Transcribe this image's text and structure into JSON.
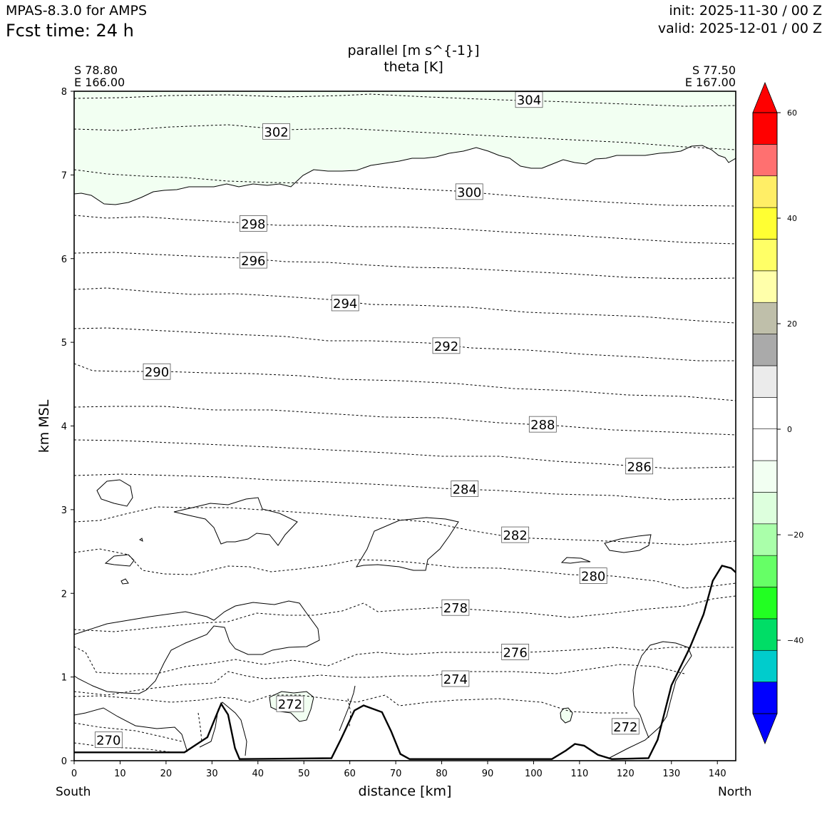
{
  "header": {
    "model": "MPAS-8.3.0 for AMPS",
    "fcst_time": "Fcst time:   24 h",
    "init": "init: 2025-11-30 / 00 Z",
    "valid": "valid: 2025-12-01 / 00 Z"
  },
  "chart_data": {
    "type": "contour",
    "title": "parallel [m s^{-1}]",
    "subtitle": "theta [K]",
    "xlabel": "distance [km]",
    "ylabel": "km MSL",
    "xlim": [
      0,
      144
    ],
    "ylim": [
      0,
      8
    ],
    "x_ticks": [
      "0",
      "10",
      "20",
      "30",
      "40",
      "50",
      "60",
      "70",
      "80",
      "90",
      "100",
      "110",
      "120",
      "130",
      "140"
    ],
    "y_ticks": [
      "0",
      "1",
      "2",
      "3",
      "4",
      "5",
      "6",
      "7",
      "8"
    ],
    "endpoints": {
      "left": {
        "lat": "S 78.80",
        "lon": "E 166.00",
        "label": "South"
      },
      "right": {
        "lat": "S 77.50",
        "lon": "E 167.00",
        "label": "North"
      }
    },
    "theta_contours": [
      {
        "label": "304",
        "label_x": 99,
        "label_y": 7.9,
        "y_left": 7.92,
        "y_right": 7.82
      },
      {
        "label": "302",
        "label_x": 44,
        "label_y": 7.52,
        "y_left": 7.56,
        "y_right": 7.45
      },
      {
        "label": "300",
        "label_x": 86,
        "label_y": 6.8,
        "y_left": 7.07,
        "y_right": 6.63
      },
      {
        "label": "298",
        "label_x": 39,
        "label_y": 6.42,
        "y_left": 6.52,
        "y_right": 6.3
      },
      {
        "label": "296",
        "label_x": 39,
        "label_y": 5.98,
        "y_left": 6.07,
        "y_right": 5.85
      },
      {
        "label": "294",
        "label_x": 59,
        "label_y": 5.47,
        "y_left": 5.63,
        "y_right": 5.35
      },
      {
        "label": "292",
        "label_x": 81,
        "label_y": 4.96,
        "y_left": 5.17,
        "y_right": 4.88
      },
      {
        "label": "290",
        "label_x": 18,
        "label_y": 4.65,
        "y_left": 4.75,
        "y_right": 4.45
      },
      {
        "label": "288",
        "label_x": 102,
        "label_y": 4.02,
        "y_left": 4.22,
        "y_right": 3.88
      },
      {
        "label": "286",
        "label_x": 123,
        "label_y": 3.52,
        "y_left": 3.83,
        "y_right": 3.5
      },
      {
        "label": "284",
        "label_x": 85,
        "label_y": 3.25,
        "y_left": 3.4,
        "y_right": 3.15
      },
      {
        "label": "282",
        "label_x": 96,
        "label_y": 2.7,
        "y_left": 2.85,
        "y_right": 2.6
      },
      {
        "label": "280",
        "label_x": 113,
        "label_y": 2.21,
        "y_left": 2.48,
        "y_right": 2.1
      },
      {
        "label": "278",
        "label_x": 83,
        "label_y": 1.83,
        "y_left": 1.85,
        "y_right": 2.3
      },
      {
        "label": "276",
        "label_x": 96,
        "label_y": 1.3,
        "y_left": 1.37,
        "y_right": 1.55
      },
      {
        "label": "274",
        "label_x": 83,
        "label_y": 0.98,
        "y_left": 1.0,
        "y_right": 1.3
      },
      {
        "label": "272",
        "label_x": 47,
        "label_y": 0.68,
        "y_left": 0.77,
        "y_right": 0.9
      },
      {
        "label": "272",
        "label_x": 120,
        "label_y": 0.41,
        "y_left": null,
        "y_right": null
      },
      {
        "label": "270",
        "label_x": 7.5,
        "label_y": 0.25,
        "y_left": 0.44,
        "y_right": null
      }
    ],
    "terrain_km": [
      [
        0,
        0.1
      ],
      [
        24,
        0.1
      ],
      [
        29,
        0.28
      ],
      [
        31,
        0.55
      ],
      [
        32,
        0.68
      ],
      [
        33.5,
        0.55
      ],
      [
        35,
        0.15
      ],
      [
        36,
        0.02
      ],
      [
        56,
        0.03
      ],
      [
        58,
        0.25
      ],
      [
        61,
        0.6
      ],
      [
        63,
        0.66
      ],
      [
        67,
        0.58
      ],
      [
        69,
        0.35
      ],
      [
        71,
        0.08
      ],
      [
        73,
        0.02
      ],
      [
        104,
        0.02
      ],
      [
        107,
        0.12
      ],
      [
        109,
        0.2
      ],
      [
        111,
        0.18
      ],
      [
        114,
        0.07
      ],
      [
        117,
        0.02
      ],
      [
        125,
        0.03
      ],
      [
        127,
        0.25
      ],
      [
        130,
        0.9
      ],
      [
        134,
        1.35
      ],
      [
        137,
        1.75
      ],
      [
        139,
        2.15
      ],
      [
        141,
        2.33
      ],
      [
        143,
        2.3
      ],
      [
        144,
        2.25
      ]
    ],
    "colorbar": {
      "levels": [
        -55,
        -50,
        -45,
        -40,
        -35,
        -30,
        -25,
        -20,
        -15,
        -10,
        -5,
        0,
        5,
        10,
        15,
        20,
        25,
        30,
        35,
        40,
        45,
        50,
        55,
        60,
        65
      ],
      "colors": [
        "#0000ff",
        "#00cccc",
        "#00dd66",
        "#22ff22",
        "#66ff66",
        "#aaffaa",
        "#ddffdd",
        "#f2fff2",
        "#ffffff",
        "#ffffff",
        "#ebebeb",
        "#aaaaaa",
        "#bfbfaa",
        "#ffffaa",
        "#ffff66",
        "#ffff33",
        "#ffee66",
        "#ff7070",
        "#ff0000"
      ],
      "under_color": "#0000ff",
      "over_color": "#ff0000",
      "ticks": [
        "60",
        "40",
        "20",
        "0",
        "−20",
        "−40"
      ]
    }
  }
}
